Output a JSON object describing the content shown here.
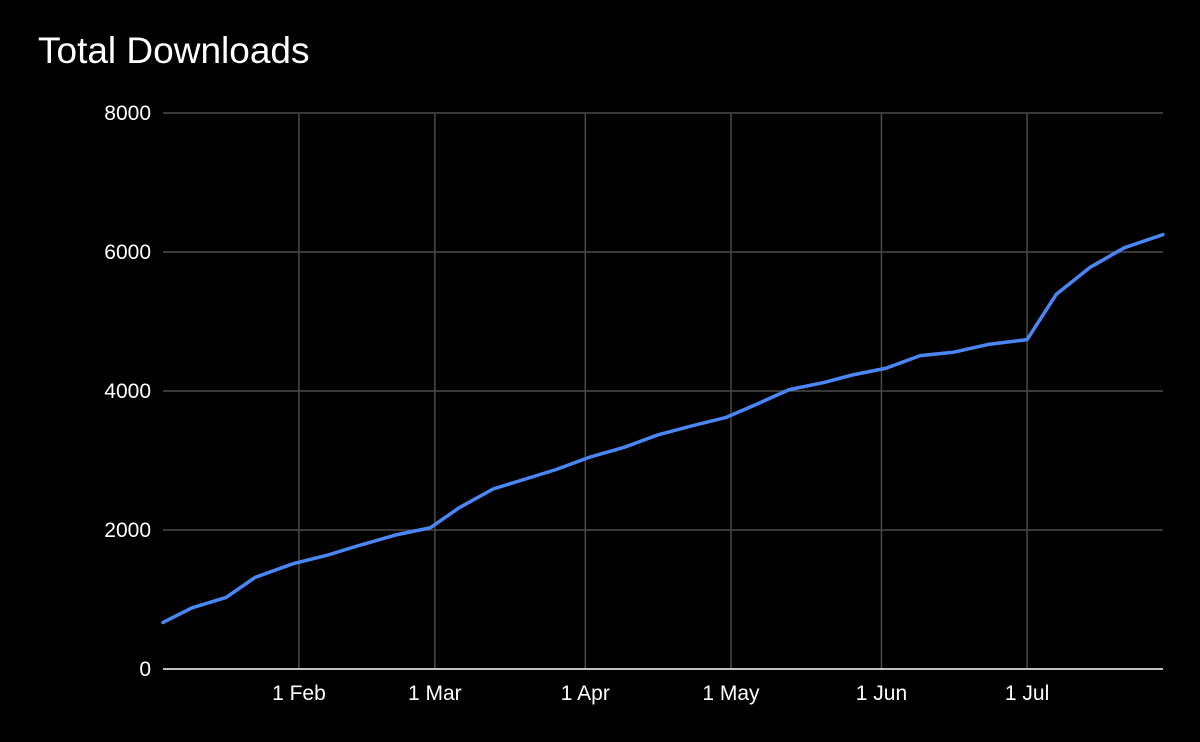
{
  "chart_data": {
    "type": "line",
    "title": "Total Downloads",
    "xlabel": "",
    "ylabel": "",
    "ylim": [
      0,
      8000
    ],
    "yticks": [
      0,
      2000,
      4000,
      6000,
      8000
    ],
    "xlim": [
      "2022-01-04",
      "2022-07-29"
    ],
    "xticks": [
      {
        "date": "2022-02-01",
        "label": "1 Feb"
      },
      {
        "date": "2022-03-01",
        "label": "1 Mar"
      },
      {
        "date": "2022-04-01",
        "label": "1 Apr"
      },
      {
        "date": "2022-05-01",
        "label": "1 May"
      },
      {
        "date": "2022-06-01",
        "label": "1 Jun"
      },
      {
        "date": "2022-07-01",
        "label": "1 Jul"
      }
    ],
    "grid": true,
    "legend": "none",
    "colors": {
      "background": "#000000",
      "line": "#4a86f5",
      "grid": "#4a4a4a",
      "text": "#ffffff"
    },
    "series": [
      {
        "x": [
          "2022-01-04",
          "2022-01-10",
          "2022-01-17",
          "2022-01-23",
          "2022-01-31",
          "2022-02-07",
          "2022-02-13",
          "2022-02-21",
          "2022-02-28",
          "2022-03-06",
          "2022-03-13",
          "2022-03-19",
          "2022-03-26",
          "2022-04-02",
          "2022-04-09",
          "2022-04-16",
          "2022-04-23",
          "2022-04-30",
          "2022-05-06",
          "2022-05-13",
          "2022-05-20",
          "2022-05-26",
          "2022-06-02",
          "2022-06-09",
          "2022-06-16",
          "2022-06-23",
          "2022-07-01",
          "2022-07-07",
          "2022-07-14",
          "2022-07-21",
          "2022-07-29"
        ],
        "values": [
          670,
          880,
          1030,
          1320,
          1520,
          1640,
          1770,
          1930,
          2030,
          2320,
          2590,
          2720,
          2870,
          3050,
          3190,
          3370,
          3500,
          3620,
          3800,
          4020,
          4120,
          4230,
          4330,
          4510,
          4560,
          4670,
          4740,
          5390,
          5780,
          6060,
          6250
        ]
      }
    ]
  }
}
